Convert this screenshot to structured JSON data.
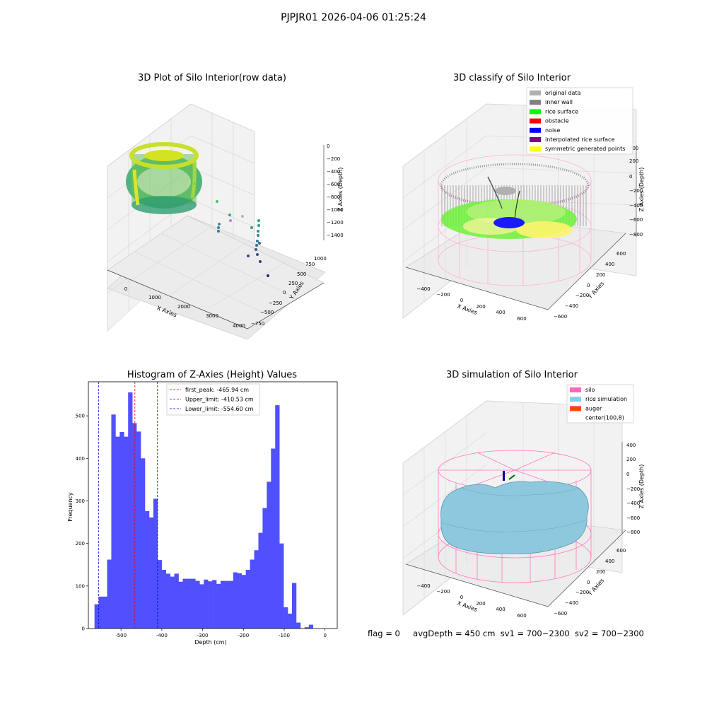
{
  "suptitle": "PJPJR01 2026-04-06 01:25:24",
  "panels": {
    "raw": {
      "title": "3D Plot of Silo Interior(row data)",
      "xlabel": "X Axies",
      "ylabel": "Y Axies",
      "zlabel": "Z Axies (Depth)",
      "xticks": [
        "0",
        "1000",
        "2000",
        "3000",
        "4000"
      ],
      "yticks": [
        "1000",
        "750",
        "500",
        "250",
        "0",
        "−250",
        "−500",
        "−750"
      ],
      "zticks": [
        "0",
        "−200",
        "−400",
        "−600",
        "−800",
        "−1000",
        "−1200",
        "−1400"
      ]
    },
    "classify": {
      "title": "3D classify of Silo Interior",
      "xlabel": "X Axies",
      "ylabel": "Y Axies",
      "zlabel": "Z Axies (Depth)",
      "xticks": [
        "−400",
        "−200",
        "0",
        "200",
        "400",
        "600"
      ],
      "yticks": [
        "600",
        "400",
        "200",
        "0",
        "−200",
        "−400",
        "−600"
      ],
      "zticks": [
        "400",
        "200",
        "0",
        "−200",
        "−400",
        "−600",
        "−800"
      ],
      "legend": [
        {
          "label": "original data",
          "color": "#b0b0b0"
        },
        {
          "label": "inner wall",
          "color": "#808080"
        },
        {
          "label": "rice surface",
          "color": "#00ff00"
        },
        {
          "label": "obstacle",
          "color": "#ff0000"
        },
        {
          "label": "noise",
          "color": "#0000ff"
        },
        {
          "label": "interpolated rice surface",
          "color": "#800080"
        },
        {
          "label": "symmetric generated points",
          "color": "#ffff00"
        }
      ]
    },
    "simulation": {
      "title": "3D simulation of Silo Interior",
      "xlabel": "X Axies",
      "ylabel": "Y Axies",
      "zlabel": "Z Axies (Depth)",
      "xticks": [
        "−400",
        "−200",
        "0",
        "200",
        "400",
        "600"
      ],
      "yticks": [
        "600",
        "400",
        "200",
        "0",
        "−200",
        "−400",
        "−600"
      ],
      "zticks": [
        "400",
        "200",
        "0",
        "−200",
        "−400",
        "−600",
        "−800"
      ],
      "legend": [
        {
          "label": "silo",
          "color": "#ff69b4"
        },
        {
          "label": "rice simulation",
          "color": "#87ceeb"
        },
        {
          "label": "auger",
          "color": "#ff4500"
        },
        {
          "label": "center(100,8)",
          "color": ""
        }
      ]
    }
  },
  "chart_data": {
    "type": "bar",
    "title": "Histogram of Z-Axies (Height) Values",
    "xlabel": "Depth (cm)",
    "ylabel": "Frequency",
    "xlim": [
      -580,
      30
    ],
    "ylim": [
      0,
      580
    ],
    "xticks": [
      -500,
      -400,
      -300,
      -200,
      -100,
      0
    ],
    "yticks": [
      0,
      100,
      200,
      300,
      400,
      500
    ],
    "bin_start": -565,
    "bin_width": 10.3,
    "values": [
      57,
      75,
      75,
      162,
      503,
      451,
      462,
      451,
      555,
      483,
      463,
      400,
      276,
      261,
      305,
      161,
      138,
      129,
      122,
      129,
      110,
      117,
      117,
      117,
      112,
      104,
      115,
      111,
      114,
      105,
      112,
      112,
      112,
      132,
      130,
      126,
      138,
      162,
      184,
      225,
      283,
      345,
      423,
      525,
      200,
      50,
      35,
      107,
      14,
      0,
      3,
      9
    ],
    "bar_color": "#5050ff",
    "lines": [
      {
        "label": "first_peak: -465.94 cm",
        "x": -465.94,
        "color": "#ff0000"
      },
      {
        "label": "Upper_limit: -410.53 cm",
        "x": -410.53,
        "color": "#0000cc"
      },
      {
        "label": "Lower_limit: -554.60 cm",
        "x": -554.6,
        "color": "#0000cc"
      }
    ]
  },
  "footer": {
    "flag": "flag = 0",
    "avg": "avgDepth = 450 cm",
    "sv1": "sv1 = 700~2300",
    "sv2": "sv2 = 700~2300"
  }
}
